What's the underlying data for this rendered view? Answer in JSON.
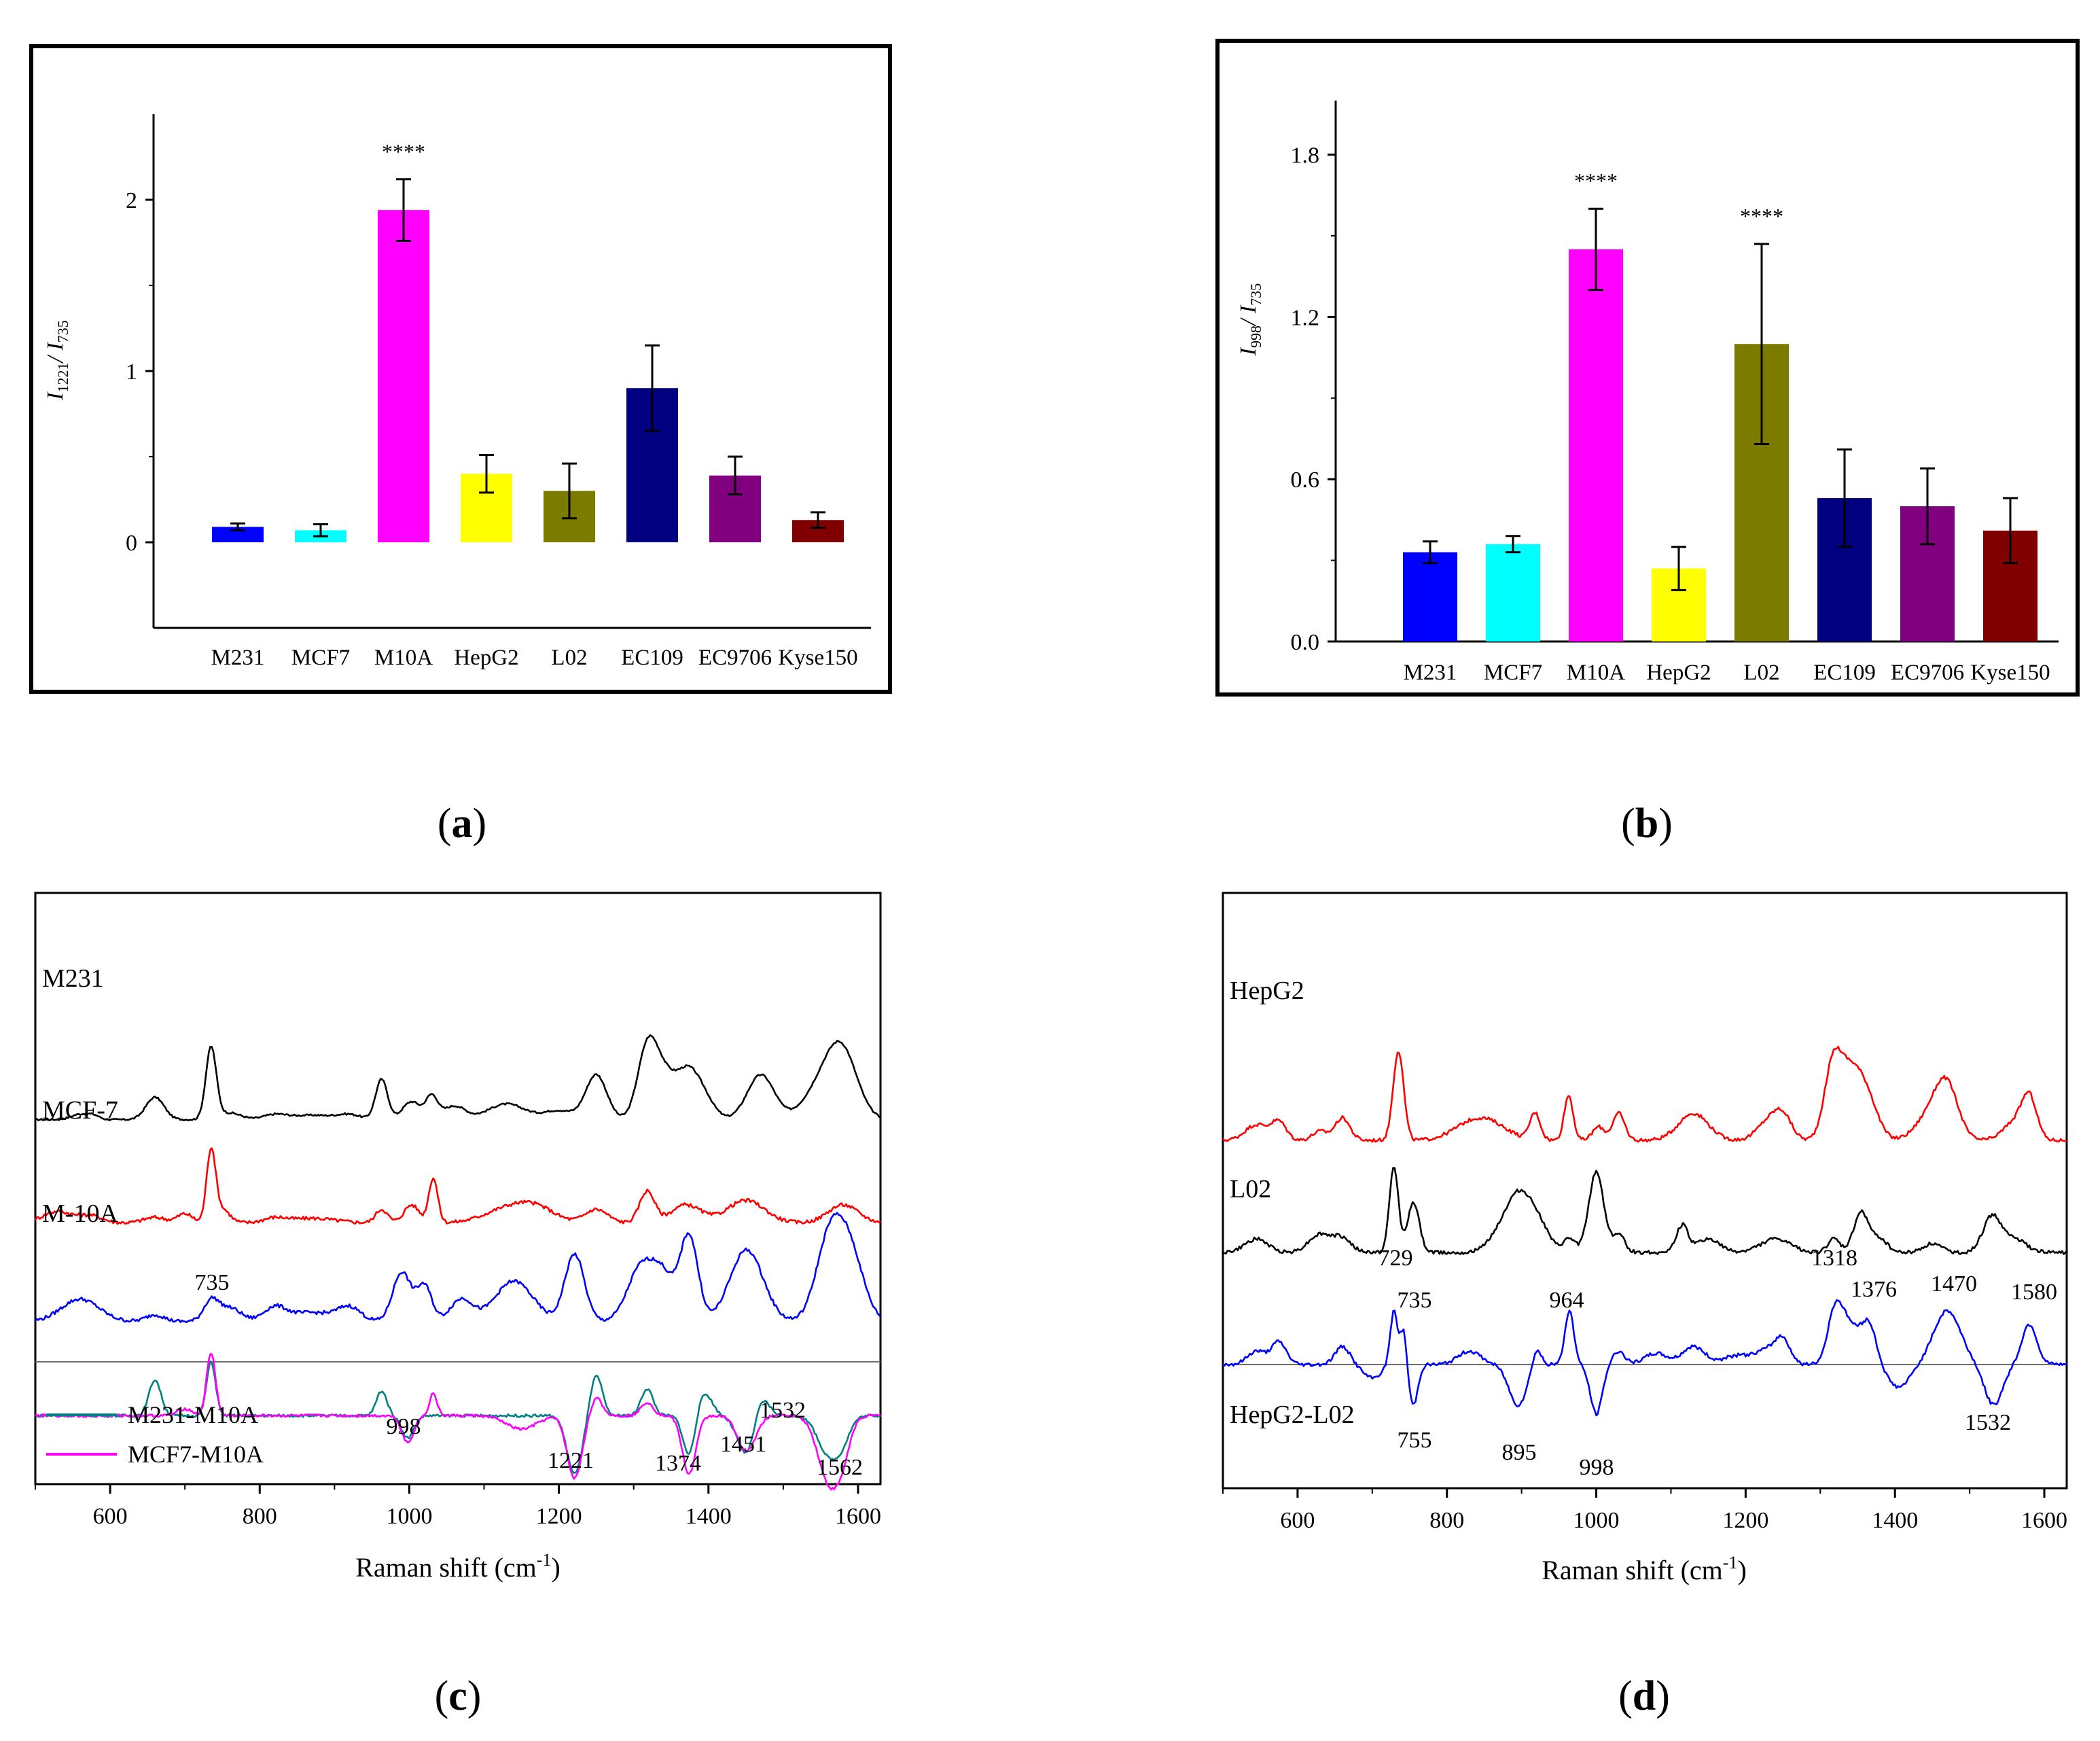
{
  "panel_labels": [
    "a",
    "b",
    "c",
    "d"
  ],
  "colors": {
    "M231": "#0000ff",
    "MCF7": "#00ffff",
    "M10A": "#ff00ff",
    "HepG2": "#ffff00",
    "L02": "#7b7b00",
    "EC109": "#000080",
    "EC9706": "#800080",
    "Kyse150": "#800000",
    "black": "#000000",
    "red": "#ff0000",
    "blue": "#0000ff",
    "teal": "#008080",
    "magenta": "#ff00ff"
  },
  "chart_data": [
    {
      "type": "bar",
      "panel": "a",
      "categories": [
        "M231",
        "MCF7",
        "M10A",
        "HepG2",
        "L02",
        "EC109",
        "EC9706",
        "Kyse150"
      ],
      "values": [
        0.09,
        0.07,
        1.94,
        0.4,
        0.3,
        0.9,
        0.39,
        0.13
      ],
      "errors": [
        0.02,
        0.035,
        0.18,
        0.11,
        0.16,
        0.25,
        0.11,
        0.045
      ],
      "ylabel": {
        "main": "I",
        "sub1": "1221",
        "sep": "/ I",
        "sub2": "735"
      },
      "ylim": [
        -0.5,
        2.5
      ],
      "yticks": [
        0,
        1,
        2
      ],
      "ytick_labels": [
        "0",
        "1",
        "2"
      ],
      "annotations": [
        {
          "category": "M10A",
          "text": "****"
        }
      ]
    },
    {
      "type": "bar",
      "panel": "b",
      "categories": [
        "M231",
        "MCF7",
        "M10A",
        "HepG2",
        "L02",
        "EC109",
        "EC9706",
        "Kyse150"
      ],
      "values": [
        0.33,
        0.36,
        1.45,
        0.27,
        1.1,
        0.53,
        0.5,
        0.41
      ],
      "errors": [
        0.04,
        0.03,
        0.15,
        0.08,
        0.37,
        0.18,
        0.14,
        0.12
      ],
      "ylabel": {
        "main": "I",
        "sub1": "998",
        "sep": "/ I",
        "sub2": "735"
      },
      "ylim": [
        0.0,
        2.0
      ],
      "yticks": [
        0.0,
        0.6,
        1.2,
        1.8
      ],
      "ytick_labels": [
        "0.0",
        "0.6",
        "1.2",
        "1.8"
      ],
      "annotations": [
        {
          "category": "M10A",
          "text": "****"
        },
        {
          "category": "L02",
          "text": "****"
        }
      ]
    },
    {
      "type": "line",
      "panel": "c",
      "xlabel": {
        "main": "Raman shift (cm",
        "sup": "-1",
        "end": ")"
      },
      "xlim": [
        500,
        1630
      ],
      "xticks": [
        600,
        800,
        1000,
        1200,
        1400,
        1600
      ],
      "xtick_labels": [
        "600",
        "800",
        "1000",
        "1200",
        "1400",
        "1600"
      ],
      "series": [
        {
          "name": "M231",
          "role": "spectrum",
          "color": "#000000",
          "baseline": 5.4,
          "noise": 0.02,
          "peaks": [
            [
              560,
              0.12,
              12
            ],
            [
              578,
              0.08,
              8
            ],
            [
              660,
              0.5,
              12
            ],
            [
              735,
              1.6,
              7
            ],
            [
              760,
              0.15,
              15
            ],
            [
              820,
              0.1,
              15
            ],
            [
              870,
              0.1,
              30
            ],
            [
              920,
              0.1,
              15
            ],
            [
              963,
              0.9,
              8
            ],
            [
              1003,
              0.4,
              12
            ],
            [
              1030,
              0.5,
              8
            ],
            [
              1060,
              0.3,
              15
            ],
            [
              1130,
              0.35,
              25
            ],
            [
              1200,
              0.2,
              20
            ],
            [
              1250,
              1.0,
              14
            ],
            [
              1318,
              1.5,
              13
            ],
            [
              1340,
              0.9,
              15
            ],
            [
              1372,
              1.0,
              15
            ],
            [
              1395,
              0.4,
              14
            ],
            [
              1470,
              1.0,
              18
            ],
            [
              1555,
              0.8,
              25
            ],
            [
              1580,
              1.2,
              20
            ]
          ]
        },
        {
          "name": "MCF-7",
          "role": "spectrum",
          "color": "#ff0000",
          "baseline": 3.1,
          "noise": 0.04,
          "peaks": [
            [
              530,
              0.25,
              20
            ],
            [
              575,
              0.15,
              15
            ],
            [
              660,
              0.12,
              15
            ],
            [
              700,
              0.2,
              10
            ],
            [
              735,
              1.6,
              6
            ],
            [
              750,
              0.3,
              10
            ],
            [
              820,
              0.1,
              15
            ],
            [
              870,
              0.1,
              30
            ],
            [
              963,
              0.3,
              8
            ],
            [
              1003,
              0.4,
              10
            ],
            [
              1032,
              1.0,
              6
            ],
            [
              1130,
              0.3,
              30
            ],
            [
              1170,
              0.3,
              25
            ],
            [
              1250,
              0.3,
              15
            ],
            [
              1318,
              0.7,
              10
            ],
            [
              1370,
              0.4,
              20
            ],
            [
              1450,
              0.5,
              25
            ],
            [
              1580,
              0.4,
              20
            ]
          ]
        },
        {
          "name": "M-10A",
          "role": "spectrum",
          "color": "#0000ff",
          "baseline": 0.9,
          "noise": 0.04,
          "peaks": [
            [
              560,
              0.5,
              25
            ],
            [
              660,
              0.15,
              12
            ],
            [
              735,
              0.45,
              10
            ],
            [
              760,
              0.3,
              15
            ],
            [
              820,
              0.3,
              15
            ],
            [
              870,
              0.2,
              30
            ],
            [
              920,
              0.3,
              15
            ],
            [
              990,
              1.1,
              12
            ],
            [
              1020,
              0.8,
              10
            ],
            [
              1070,
              0.5,
              15
            ],
            [
              1140,
              0.9,
              25
            ],
            [
              1221,
              1.5,
              13
            ],
            [
              1310,
              1.2,
              18
            ],
            [
              1340,
              0.9,
              15
            ],
            [
              1374,
              1.9,
              12
            ],
            [
              1451,
              1.6,
              22
            ],
            [
              1562,
              1.8,
              18
            ],
            [
              1590,
              1.4,
              18
            ]
          ]
        },
        {
          "name": "M231-M10A",
          "role": "difference",
          "color": "#008080",
          "baseline": -1.2,
          "noise": 0.03,
          "peaks": [
            [
              660,
              0.8,
              8
            ],
            [
              735,
              1.2,
              6
            ],
            [
              963,
              0.55,
              7
            ],
            [
              998,
              -0.5,
              8
            ],
            [
              1221,
              -1.3,
              10
            ],
            [
              1250,
              0.9,
              8
            ],
            [
              1318,
              0.6,
              8
            ],
            [
              1374,
              -0.9,
              8
            ],
            [
              1395,
              0.5,
              10
            ],
            [
              1451,
              -0.9,
              12
            ],
            [
              1470,
              0.5,
              10
            ],
            [
              1562,
              -0.9,
              15
            ],
            [
              1580,
              -0.3,
              10
            ]
          ]
        },
        {
          "name": "MCF7-M10A",
          "role": "difference",
          "color": "#ff00ff",
          "baseline": -1.2,
          "noise": 0.03,
          "peaks": [
            [
              700,
              0.15,
              10
            ],
            [
              735,
              1.4,
              6
            ],
            [
              998,
              -0.6,
              8
            ],
            [
              1032,
              0.5,
              5
            ],
            [
              1150,
              -0.3,
              20
            ],
            [
              1221,
              -1.4,
              10
            ],
            [
              1250,
              0.4,
              8
            ],
            [
              1318,
              0.3,
              8
            ],
            [
              1374,
              -1.3,
              9
            ],
            [
              1451,
              -0.8,
              12
            ],
            [
              1562,
              -1.5,
              15
            ],
            [
              1580,
              -0.5,
              10
            ]
          ]
        }
      ],
      "series_labels": [
        "M231",
        "MCF-7",
        "M-10A"
      ],
      "legend": [
        "M231-M10A",
        "MCF7-M10A"
      ],
      "legend_position": "bottom-left",
      "peak_labels": [
        "735",
        "998",
        "1221",
        "1374",
        "1451",
        "1532",
        "1562"
      ],
      "zero_line": true
    },
    {
      "type": "line",
      "panel": "d",
      "xlabel": {
        "main": "Raman shift (cm",
        "sup": "-1",
        "end": ")"
      },
      "xlim": [
        500,
        1630
      ],
      "xticks": [
        600,
        800,
        1000,
        1200,
        1400,
        1600
      ],
      "xtick_labels": [
        "600",
        "800",
        "1000",
        "1200",
        "1400",
        "1600"
      ],
      "series": [
        {
          "name": "HepG2",
          "role": "spectrum",
          "color": "#ff0000",
          "baseline": 5.0,
          "noise": 0.04,
          "peaks": [
            [
              545,
              0.35,
              15
            ],
            [
              575,
              0.4,
              10
            ],
            [
              630,
              0.2,
              10
            ],
            [
              660,
              0.5,
              10
            ],
            [
              735,
              2.0,
              7
            ],
            [
              830,
              0.3,
              25
            ],
            [
              860,
              0.3,
              25
            ],
            [
              918,
              0.6,
              7
            ],
            [
              963,
              1.0,
              6
            ],
            [
              1003,
              0.3,
              8
            ],
            [
              1030,
              0.6,
              8
            ],
            [
              1130,
              0.6,
              20
            ],
            [
              1230,
              0.4,
              15
            ],
            [
              1250,
              0.5,
              12
            ],
            [
              1318,
              1.8,
              12
            ],
            [
              1340,
              1.0,
              12
            ],
            [
              1360,
              1.1,
              15
            ],
            [
              1450,
              0.6,
              20
            ],
            [
              1470,
              1.0,
              15
            ],
            [
              1560,
              0.4,
              15
            ],
            [
              1580,
              0.9,
              10
            ]
          ]
        },
        {
          "name": "L02",
          "role": "spectrum",
          "color": "#000000",
          "baseline": 2.5,
          "noise": 0.04,
          "peaks": [
            [
              545,
              0.3,
              15
            ],
            [
              630,
              0.4,
              15
            ],
            [
              660,
              0.3,
              12
            ],
            [
              729,
              1.9,
              6
            ],
            [
              755,
              1.1,
              8
            ],
            [
              870,
              0.4,
              15
            ],
            [
              895,
              1.1,
              15
            ],
            [
              920,
              0.7,
              15
            ],
            [
              964,
              0.3,
              8
            ],
            [
              1000,
              1.8,
              10
            ],
            [
              1030,
              0.4,
              8
            ],
            [
              1115,
              0.6,
              8
            ],
            [
              1150,
              0.3,
              15
            ],
            [
              1240,
              0.3,
              20
            ],
            [
              1318,
              0.3,
              8
            ],
            [
              1355,
              0.9,
              10
            ],
            [
              1380,
              0.3,
              10
            ],
            [
              1450,
              0.2,
              12
            ],
            [
              1530,
              0.8,
              12
            ],
            [
              1560,
              0.3,
              15
            ]
          ]
        },
        {
          "name": "HepG2-L02",
          "role": "difference",
          "color": "#0000ff",
          "baseline": 0.0,
          "noise": 0.04,
          "peaks": [
            [
              545,
              0.3,
              12
            ],
            [
              575,
              0.5,
              10
            ],
            [
              660,
              0.4,
              10
            ],
            [
              700,
              -0.3,
              12
            ],
            [
              729,
              1.2,
              5
            ],
            [
              742,
              0.8,
              4
            ],
            [
              755,
              -0.9,
              6
            ],
            [
              830,
              0.3,
              15
            ],
            [
              895,
              -0.9,
              12
            ],
            [
              920,
              0.4,
              6
            ],
            [
              964,
              1.2,
              6
            ],
            [
              1000,
              -1.1,
              8
            ],
            [
              1030,
              0.3,
              8
            ],
            [
              1080,
              0.25,
              15
            ],
            [
              1130,
              0.4,
              15
            ],
            [
              1190,
              0.2,
              20
            ],
            [
              1230,
              0.3,
              15
            ],
            [
              1250,
              0.5,
              10
            ],
            [
              1320,
              1.2,
              10
            ],
            [
              1340,
              0.8,
              12
            ],
            [
              1365,
              0.9,
              10
            ],
            [
              1405,
              -0.5,
              15
            ],
            [
              1470,
              1.2,
              18
            ],
            [
              1532,
              -0.9,
              12
            ],
            [
              1580,
              0.9,
              10
            ]
          ]
        }
      ],
      "series_labels": [
        "HepG2",
        "L02",
        "HepG2-L02"
      ],
      "peak_labels": [
        "729",
        "735",
        "964",
        "1318",
        "1376",
        "1470",
        "1580",
        "755",
        "895",
        "998",
        "1532"
      ],
      "zero_line": true
    }
  ]
}
